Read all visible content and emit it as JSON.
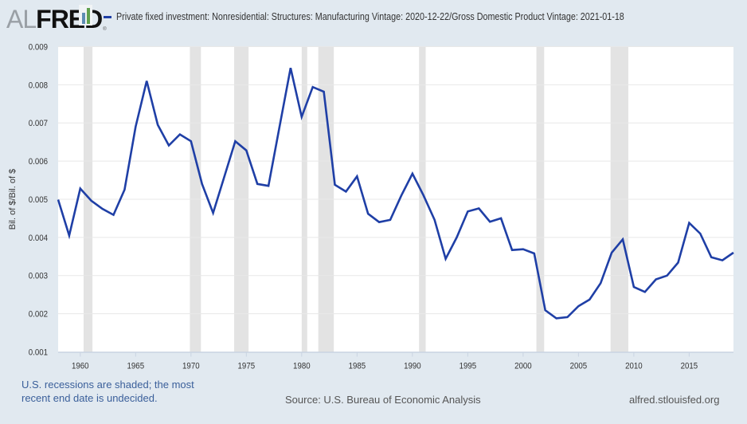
{
  "header": {
    "logo_al": "AL",
    "logo_fred": "FRED",
    "logo_reg": "®",
    "legend_label": "Private fixed investment: Nonresidential: Structures: Manufacturing Vintage: 2020-12-22/Gross Domestic Product Vintage: 2021-01-18"
  },
  "footer": {
    "recession_note": "U.S. recessions are shaded; the most recent end date is undecided.",
    "source": "Source: U.S. Bureau of Economic Analysis",
    "url": "alfred.stlouisfed.org"
  },
  "colors": {
    "line": "#1f3fa6",
    "recession": "#e3e3e3",
    "background": "#e1e9f0",
    "plot": "#ffffff",
    "grid": "#e8e8e8"
  },
  "chart_data": {
    "type": "line",
    "title": "",
    "xlabel": "",
    "ylabel": "Bil. of $/Bil. of $",
    "xlim": [
      1958,
      2019
    ],
    "ylim": [
      0.001,
      0.009
    ],
    "grid": true,
    "legend_position": "top",
    "yticks": [
      "0.001",
      "0.002",
      "0.003",
      "0.004",
      "0.005",
      "0.006",
      "0.007",
      "0.008",
      "0.009"
    ],
    "xticks": [
      "1960",
      "1965",
      "1970",
      "1975",
      "1980",
      "1985",
      "1990",
      "1995",
      "2000",
      "2005",
      "2010",
      "2015"
    ],
    "recessions": [
      [
        1960.3,
        1961.1
      ],
      [
        1969.9,
        1970.9
      ],
      [
        1973.9,
        1975.2
      ],
      [
        1980.0,
        1980.5
      ],
      [
        1981.5,
        1982.9
      ],
      [
        1990.6,
        1991.2
      ],
      [
        2001.2,
        2001.9
      ],
      [
        2007.9,
        2009.5
      ]
    ],
    "series": [
      {
        "name": "Private fixed investment: Nonresidential: Structures: Manufacturing Vintage: 2020-12-22/Gross Domestic Product Vintage: 2021-01-18",
        "x": [
          1958,
          1959,
          1960,
          1961,
          1962,
          1963,
          1964,
          1965,
          1966,
          1967,
          1968,
          1969,
          1970,
          1971,
          1972,
          1973,
          1974,
          1975,
          1976,
          1977,
          1978,
          1979,
          1980,
          1981,
          1982,
          1983,
          1984,
          1985,
          1986,
          1987,
          1988,
          1989,
          1990,
          1991,
          1992,
          1993,
          1994,
          1995,
          1996,
          1997,
          1998,
          1999,
          2000,
          2001,
          2002,
          2003,
          2004,
          2005,
          2006,
          2007,
          2008,
          2009,
          2010,
          2011,
          2012,
          2013,
          2014,
          2015,
          2016,
          2017,
          2018,
          2019
        ],
        "values": [
          0.00499,
          0.00405,
          0.00528,
          0.00496,
          0.00475,
          0.00459,
          0.00525,
          0.0069,
          0.0081,
          0.00695,
          0.00641,
          0.0067,
          0.00652,
          0.0054,
          0.00464,
          0.00558,
          0.00652,
          0.00628,
          0.0054,
          0.00535,
          0.0069,
          0.00844,
          0.00716,
          0.00794,
          0.00782,
          0.00538,
          0.0052,
          0.0056,
          0.00462,
          0.0044,
          0.00446,
          0.0051,
          0.00567,
          0.0051,
          0.00446,
          0.00344,
          0.004,
          0.00468,
          0.00476,
          0.00441,
          0.0045,
          0.00367,
          0.00369,
          0.00358,
          0.00209,
          0.00188,
          0.00191,
          0.0022,
          0.00237,
          0.0028,
          0.0036,
          0.00395,
          0.0027,
          0.00257,
          0.0029,
          0.003,
          0.00334,
          0.00438,
          0.0041,
          0.00348,
          0.0034,
          0.0036
        ]
      }
    ]
  }
}
